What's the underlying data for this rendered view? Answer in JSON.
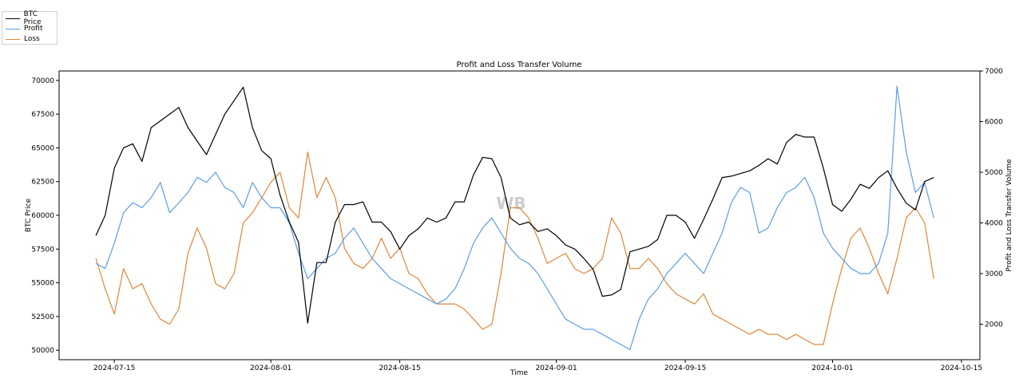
{
  "chart_data": {
    "type": "line",
    "title": "Profit and Loss Transfer Volume",
    "xlabel": "Time",
    "ylabel_left": "BTC Price",
    "ylabel_right": "Profit and Loss Transfer Volume",
    "xlim": [
      "2024-07-09",
      "2024-10-17"
    ],
    "ylim_left": [
      49300,
      70700
    ],
    "ylim_right": [
      1300,
      7000
    ],
    "x_ticks": [
      "2024-07-15",
      "2024-08-01",
      "2024-08-15",
      "2024-09-01",
      "2024-09-15",
      "2024-10-01",
      "2024-10-15"
    ],
    "y_ticks_left": [
      50000,
      52500,
      55000,
      57500,
      60000,
      62500,
      65000,
      67500,
      70000
    ],
    "y_ticks_right": [
      2000,
      3000,
      4000,
      5000,
      6000,
      7000
    ],
    "legend_position": "top-left",
    "watermark": "WB",
    "series": [
      {
        "name": "BTC Price",
        "axis": "left",
        "color": "#000000",
        "x": [
          "2024-07-13",
          "2024-07-14",
          "2024-07-15",
          "2024-07-16",
          "2024-07-17",
          "2024-07-18",
          "2024-07-19",
          "2024-07-20",
          "2024-07-21",
          "2024-07-22",
          "2024-07-23",
          "2024-07-24",
          "2024-07-25",
          "2024-07-26",
          "2024-07-27",
          "2024-07-28",
          "2024-07-29",
          "2024-07-30",
          "2024-07-31",
          "2024-08-01",
          "2024-08-02",
          "2024-08-03",
          "2024-08-04",
          "2024-08-05",
          "2024-08-06",
          "2024-08-07",
          "2024-08-08",
          "2024-08-09",
          "2024-08-10",
          "2024-08-11",
          "2024-08-12",
          "2024-08-13",
          "2024-08-14",
          "2024-08-15",
          "2024-08-16",
          "2024-08-17",
          "2024-08-18",
          "2024-08-19",
          "2024-08-20",
          "2024-08-21",
          "2024-08-22",
          "2024-08-23",
          "2024-08-24",
          "2024-08-25",
          "2024-08-26",
          "2024-08-27",
          "2024-08-28",
          "2024-08-29",
          "2024-08-30",
          "2024-08-31",
          "2024-09-01",
          "2024-09-02",
          "2024-09-03",
          "2024-09-04",
          "2024-09-05",
          "2024-09-06",
          "2024-09-07",
          "2024-09-08",
          "2024-09-09",
          "2024-09-10",
          "2024-09-11",
          "2024-09-12",
          "2024-09-13",
          "2024-09-14",
          "2024-09-15",
          "2024-09-16",
          "2024-09-17",
          "2024-09-18",
          "2024-09-19",
          "2024-09-20",
          "2024-09-21",
          "2024-09-22",
          "2024-09-23",
          "2024-09-24",
          "2024-09-25",
          "2024-09-26",
          "2024-09-27",
          "2024-09-28",
          "2024-09-29",
          "2024-09-30",
          "2024-10-01",
          "2024-10-02",
          "2024-10-03",
          "2024-10-04",
          "2024-10-05",
          "2024-10-06",
          "2024-10-07",
          "2024-10-08",
          "2024-10-09",
          "2024-10-10",
          "2024-10-11",
          "2024-10-12"
        ],
        "y": [
          58500,
          60000,
          63500,
          65000,
          65300,
          64000,
          66500,
          67000,
          67500,
          68000,
          66500,
          65500,
          64500,
          66000,
          67500,
          68500,
          69500,
          66500,
          64800,
          64200,
          61500,
          59500,
          58000,
          52000,
          56500,
          56500,
          59500,
          60800,
          60800,
          61000,
          59500,
          59500,
          58800,
          57500,
          58500,
          59000,
          59800,
          59500,
          59800,
          61000,
          61000,
          63000,
          64300,
          64200,
          62800,
          59800,
          59300,
          59500,
          58800,
          59000,
          58500,
          57800,
          57500,
          56800,
          56000,
          54000,
          54100,
          54500,
          57300,
          57500,
          57700,
          58200,
          60000,
          60000,
          59500,
          58300,
          59700,
          61200,
          62800,
          62900,
          63100,
          63300,
          63700,
          64200,
          63800,
          65400,
          66000,
          65800,
          65800,
          63500,
          60800,
          60300,
          61200,
          62300,
          62000,
          62800,
          63300,
          62000,
          60900,
          60400,
          62500,
          62800
        ]
      },
      {
        "name": "Profit",
        "axis": "right",
        "color": "#5b9ee6",
        "x": [
          "2024-07-13",
          "2024-07-14",
          "2024-07-15",
          "2024-07-16",
          "2024-07-17",
          "2024-07-18",
          "2024-07-19",
          "2024-07-20",
          "2024-07-21",
          "2024-07-22",
          "2024-07-23",
          "2024-07-24",
          "2024-07-25",
          "2024-07-26",
          "2024-07-27",
          "2024-07-28",
          "2024-07-29",
          "2024-07-30",
          "2024-07-31",
          "2024-08-01",
          "2024-08-02",
          "2024-08-03",
          "2024-08-04",
          "2024-08-05",
          "2024-08-06",
          "2024-08-07",
          "2024-08-08",
          "2024-08-09",
          "2024-08-10",
          "2024-08-11",
          "2024-08-12",
          "2024-08-13",
          "2024-08-14",
          "2024-08-15",
          "2024-08-16",
          "2024-08-17",
          "2024-08-18",
          "2024-08-19",
          "2024-08-20",
          "2024-08-21",
          "2024-08-22",
          "2024-08-23",
          "2024-08-24",
          "2024-08-25",
          "2024-08-26",
          "2024-08-27",
          "2024-08-28",
          "2024-08-29",
          "2024-08-30",
          "2024-08-31",
          "2024-09-01",
          "2024-09-02",
          "2024-09-03",
          "2024-09-04",
          "2024-09-05",
          "2024-09-06",
          "2024-09-07",
          "2024-09-08",
          "2024-09-09",
          "2024-09-10",
          "2024-09-11",
          "2024-09-12",
          "2024-09-13",
          "2024-09-14",
          "2024-09-15",
          "2024-09-16",
          "2024-09-17",
          "2024-09-18",
          "2024-09-19",
          "2024-09-20",
          "2024-09-21",
          "2024-09-22",
          "2024-09-23",
          "2024-09-24",
          "2024-09-25",
          "2024-09-26",
          "2024-09-27",
          "2024-09-28",
          "2024-09-29",
          "2024-09-30",
          "2024-10-01",
          "2024-10-02",
          "2024-10-03",
          "2024-10-04",
          "2024-10-05",
          "2024-10-06",
          "2024-10-07",
          "2024-10-08",
          "2024-10-09",
          "2024-10-10",
          "2024-10-11",
          "2024-10-12"
        ],
        "y": [
          3200,
          3100,
          3600,
          4200,
          4400,
          4300,
          4500,
          4800,
          4200,
          4400,
          4600,
          4900,
          4800,
          5000,
          4700,
          4600,
          4300,
          4800,
          4500,
          4300,
          4300,
          4000,
          3400,
          2900,
          3100,
          3300,
          3400,
          3700,
          3900,
          3600,
          3300,
          3100,
          2900,
          2800,
          2700,
          2600,
          2500,
          2400,
          2500,
          2700,
          3100,
          3600,
          3900,
          4100,
          3800,
          3500,
          3300,
          3200,
          3000,
          2700,
          2400,
          2100,
          2000,
          1900,
          1900,
          1800,
          1700,
          1600,
          1500,
          2100,
          2500,
          2700,
          3000,
          3200,
          3400,
          3200,
          3000,
          3400,
          3800,
          4400,
          4700,
          4600,
          3800,
          3900,
          4300,
          4600,
          4700,
          4900,
          4500,
          3800,
          3500,
          3300,
          3100,
          3000,
          3000,
          3200,
          3800,
          6700,
          5400,
          4600,
          4800,
          4100
        ]
      },
      {
        "name": "Loss",
        "axis": "right",
        "color": "#e0863a",
        "x": [
          "2024-07-13",
          "2024-07-14",
          "2024-07-15",
          "2024-07-16",
          "2024-07-17",
          "2024-07-18",
          "2024-07-19",
          "2024-07-20",
          "2024-07-21",
          "2024-07-22",
          "2024-07-23",
          "2024-07-24",
          "2024-07-25",
          "2024-07-26",
          "2024-07-27",
          "2024-07-28",
          "2024-07-29",
          "2024-07-30",
          "2024-07-31",
          "2024-08-01",
          "2024-08-02",
          "2024-08-03",
          "2024-08-04",
          "2024-08-05",
          "2024-08-06",
          "2024-08-07",
          "2024-08-08",
          "2024-08-09",
          "2024-08-10",
          "2024-08-11",
          "2024-08-12",
          "2024-08-13",
          "2024-08-14",
          "2024-08-15",
          "2024-08-16",
          "2024-08-17",
          "2024-08-18",
          "2024-08-19",
          "2024-08-20",
          "2024-08-21",
          "2024-08-22",
          "2024-08-23",
          "2024-08-24",
          "2024-08-25",
          "2024-08-26",
          "2024-08-27",
          "2024-08-28",
          "2024-08-29",
          "2024-08-30",
          "2024-08-31",
          "2024-09-01",
          "2024-09-02",
          "2024-09-03",
          "2024-09-04",
          "2024-09-05",
          "2024-09-06",
          "2024-09-07",
          "2024-09-08",
          "2024-09-09",
          "2024-09-10",
          "2024-09-11",
          "2024-09-12",
          "2024-09-13",
          "2024-09-14",
          "2024-09-15",
          "2024-09-16",
          "2024-09-17",
          "2024-09-18",
          "2024-09-19",
          "2024-09-20",
          "2024-09-21",
          "2024-09-22",
          "2024-09-23",
          "2024-09-24",
          "2024-09-25",
          "2024-09-26",
          "2024-09-27",
          "2024-09-28",
          "2024-09-29",
          "2024-09-30",
          "2024-10-01",
          "2024-10-02",
          "2024-10-03",
          "2024-10-04",
          "2024-10-05",
          "2024-10-06",
          "2024-10-07",
          "2024-10-08",
          "2024-10-09",
          "2024-10-10",
          "2024-10-11",
          "2024-10-12"
        ],
        "y": [
          3300,
          2700,
          2200,
          3100,
          2700,
          2800,
          2400,
          2100,
          2000,
          2300,
          3400,
          3900,
          3500,
          2800,
          2700,
          3000,
          4000,
          4200,
          4500,
          4800,
          5000,
          4300,
          4100,
          5400,
          4500,
          4900,
          4500,
          3500,
          3200,
          3100,
          3300,
          3700,
          3300,
          3500,
          3000,
          2900,
          2600,
          2400,
          2400,
          2400,
          2300,
          2100,
          1900,
          2000,
          3000,
          4300,
          4300,
          4100,
          3700,
          3200,
          3300,
          3400,
          3100,
          3000,
          3100,
          3300,
          4100,
          3800,
          3100,
          3100,
          3300,
          3100,
          2800,
          2600,
          2500,
          2400,
          2600,
          2200,
          2100,
          2000,
          1900,
          1800,
          1900,
          1800,
          1800,
          1700,
          1800,
          1700,
          1600,
          1600,
          2400,
          3100,
          3700,
          3900,
          3500,
          3000,
          2600,
          3300,
          4100,
          4300,
          4000,
          2900
        ]
      }
    ]
  }
}
